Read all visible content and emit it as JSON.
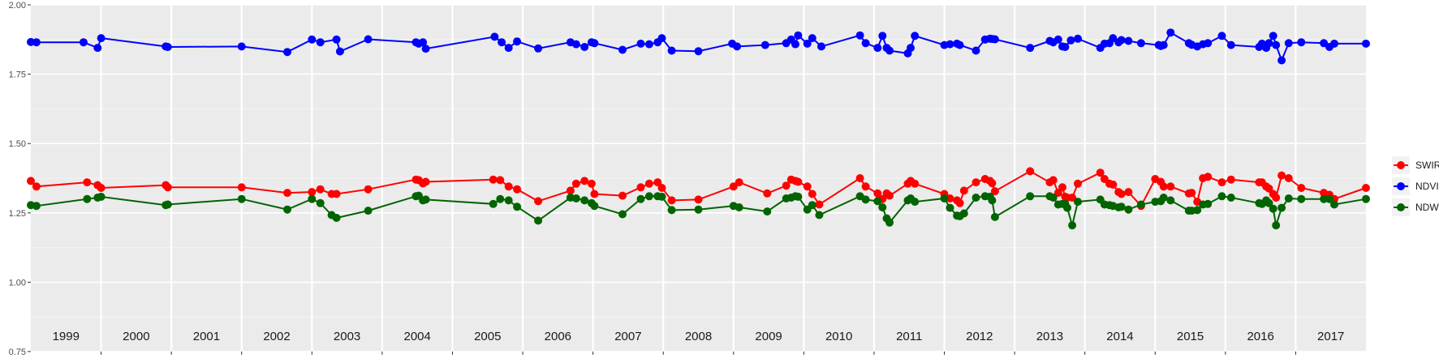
{
  "chart_data": {
    "type": "line",
    "title": "",
    "xlabel": "",
    "ylabel": "",
    "ylim": [
      0.75,
      2.0
    ],
    "yticks": [
      "0.75",
      "1.00",
      "1.25",
      "1.50",
      "1.75",
      "2.00"
    ],
    "xlim": [
      1998.5,
      2017.5
    ],
    "year_labels": [
      "1999",
      "2000",
      "2001",
      "2002",
      "2003",
      "2004",
      "2005",
      "2006",
      "2007",
      "2008",
      "2009",
      "2010",
      "2011",
      "2012",
      "2013",
      "2014",
      "2015",
      "2016",
      "2017"
    ],
    "grid": true,
    "legend_position": "right",
    "series": [
      {
        "name": "SWIR",
        "color": "#ff0000",
        "x": [
          1998.5,
          1998.58,
          1999.3,
          1999.45,
          1999.5,
          2000.42,
          2000.45,
          2001.5,
          2002.15,
          2002.5,
          2002.62,
          2002.78,
          2002.85,
          2003.3,
          2003.98,
          2004.02,
          2004.08,
          2004.12,
          2005.08,
          2005.18,
          2005.3,
          2005.42,
          2005.72,
          2006.18,
          2006.26,
          2006.38,
          2006.48,
          2006.52,
          2006.92,
          2007.18,
          2007.3,
          2007.42,
          2007.48,
          2007.62,
          2008.0,
          2008.5,
          2008.58,
          2008.98,
          2009.25,
          2009.32,
          2009.38,
          2009.42,
          2009.55,
          2009.62,
          2009.72,
          2010.3,
          2010.38,
          2010.55,
          2010.62,
          2010.68,
          2010.72,
          2010.98,
          2011.02,
          2011.08,
          2011.5,
          2011.58,
          2011.68,
          2011.72,
          2011.78,
          2011.95,
          2012.08,
          2012.15,
          2012.18,
          2012.22,
          2012.72,
          2013.0,
          2013.05,
          2013.12,
          2013.18,
          2013.22,
          2013.25,
          2013.32,
          2013.4,
          2013.72,
          2013.78,
          2013.85,
          2013.9,
          2013.98,
          2014.02,
          2014.12,
          2014.3,
          2014.5,
          2014.58,
          2014.62,
          2014.72,
          2014.98,
          2015.02,
          2015.1,
          2015.18,
          2015.25,
          2015.45,
          2015.58,
          2015.98,
          2016.02,
          2016.08,
          2016.12,
          2016.18,
          2016.22,
          2016.3,
          2016.4,
          2016.58,
          2016.9,
          2016.98,
          2017.05,
          2017.5
        ],
        "y": [
          1.365,
          1.345,
          1.36,
          1.35,
          1.34,
          1.35,
          1.342,
          1.342,
          1.322,
          1.325,
          1.335,
          1.318,
          1.318,
          1.335,
          1.37,
          1.368,
          1.356,
          1.362,
          1.37,
          1.368,
          1.345,
          1.335,
          1.292,
          1.33,
          1.355,
          1.365,
          1.355,
          1.318,
          1.312,
          1.342,
          1.355,
          1.36,
          1.34,
          1.295,
          1.298,
          1.345,
          1.36,
          1.32,
          1.348,
          1.37,
          1.365,
          1.362,
          1.345,
          1.318,
          1.28,
          1.375,
          1.345,
          1.32,
          1.3,
          1.32,
          1.312,
          1.355,
          1.365,
          1.355,
          1.318,
          1.302,
          1.295,
          1.285,
          1.33,
          1.36,
          1.372,
          1.365,
          1.357,
          1.328,
          1.4,
          1.36,
          1.368,
          1.322,
          1.342,
          1.308,
          1.305,
          1.305,
          1.355,
          1.395,
          1.372,
          1.355,
          1.352,
          1.325,
          1.318,
          1.325,
          1.275,
          1.372,
          1.362,
          1.345,
          1.345,
          1.32,
          1.322,
          1.29,
          1.375,
          1.38,
          1.36,
          1.37,
          1.36,
          1.36,
          1.345,
          1.338,
          1.318,
          1.305,
          1.385,
          1.375,
          1.34,
          1.322,
          1.315,
          1.3,
          1.34
        ]
      },
      {
        "name": "NDVI",
        "color": "#0000ff",
        "x": [
          1998.5,
          1998.58,
          1999.25,
          1999.45,
          1999.5,
          2000.42,
          2000.45,
          2001.5,
          2002.15,
          2002.5,
          2002.62,
          2002.85,
          2002.9,
          2003.3,
          2003.98,
          2004.02,
          2004.08,
          2004.12,
          2005.1,
          2005.2,
          2005.3,
          2005.42,
          2005.72,
          2006.18,
          2006.26,
          2006.38,
          2006.48,
          2006.52,
          2006.92,
          2007.18,
          2007.3,
          2007.42,
          2007.48,
          2007.62,
          2008.0,
          2008.48,
          2008.55,
          2008.95,
          2009.25,
          2009.32,
          2009.38,
          2009.42,
          2009.55,
          2009.62,
          2009.75,
          2010.3,
          2010.38,
          2010.55,
          2010.62,
          2010.68,
          2010.72,
          2010.98,
          2011.02,
          2011.08,
          2011.5,
          2011.58,
          2011.68,
          2011.72,
          2011.95,
          2012.08,
          2012.15,
          2012.18,
          2012.22,
          2012.72,
          2013.0,
          2013.05,
          2013.12,
          2013.18,
          2013.22,
          2013.3,
          2013.4,
          2013.72,
          2013.78,
          2013.85,
          2013.9,
          2013.98,
          2014.02,
          2014.12,
          2014.3,
          2014.55,
          2014.58,
          2014.62,
          2014.72,
          2014.98,
          2015.02,
          2015.1,
          2015.18,
          2015.25,
          2015.45,
          2015.58,
          2015.98,
          2016.02,
          2016.08,
          2016.12,
          2016.18,
          2016.22,
          2016.3,
          2016.4,
          2016.58,
          2016.9,
          2016.98,
          2017.05,
          2017.5
        ],
        "y": [
          1.866,
          1.865,
          1.865,
          1.845,
          1.88,
          1.85,
          1.848,
          1.85,
          1.83,
          1.875,
          1.865,
          1.875,
          1.832,
          1.876,
          1.865,
          1.86,
          1.865,
          1.842,
          1.885,
          1.865,
          1.845,
          1.868,
          1.843,
          1.865,
          1.858,
          1.848,
          1.865,
          1.862,
          1.838,
          1.86,
          1.858,
          1.865,
          1.88,
          1.835,
          1.833,
          1.86,
          1.85,
          1.855,
          1.862,
          1.875,
          1.858,
          1.89,
          1.86,
          1.88,
          1.85,
          1.89,
          1.862,
          1.845,
          1.888,
          1.845,
          1.835,
          1.825,
          1.845,
          1.888,
          1.855,
          1.858,
          1.86,
          1.855,
          1.835,
          1.875,
          1.878,
          1.877,
          1.876,
          1.845,
          1.87,
          1.865,
          1.875,
          1.85,
          1.848,
          1.872,
          1.878,
          1.845,
          1.86,
          1.862,
          1.88,
          1.865,
          1.873,
          1.87,
          1.862,
          1.855,
          1.852,
          1.855,
          1.9,
          1.862,
          1.856,
          1.85,
          1.858,
          1.862,
          1.888,
          1.855,
          1.848,
          1.86,
          1.845,
          1.862,
          1.888,
          1.855,
          1.8,
          1.862,
          1.865,
          1.862,
          1.848,
          1.86,
          1.86
        ]
      },
      {
        "name": "NDWI",
        "color": "#006400",
        "x": [
          1998.5,
          1998.58,
          1999.3,
          1999.45,
          1999.5,
          2000.42,
          2000.45,
          2001.5,
          2002.15,
          2002.5,
          2002.62,
          2002.78,
          2002.85,
          2003.3,
          2003.98,
          2004.02,
          2004.08,
          2004.12,
          2005.08,
          2005.18,
          2005.3,
          2005.42,
          2005.72,
          2006.18,
          2006.26,
          2006.38,
          2006.48,
          2006.52,
          2006.92,
          2007.18,
          2007.3,
          2007.42,
          2007.48,
          2007.62,
          2008.0,
          2008.5,
          2008.58,
          2008.98,
          2009.25,
          2009.32,
          2009.38,
          2009.42,
          2009.55,
          2009.62,
          2009.72,
          2010.3,
          2010.38,
          2010.55,
          2010.62,
          2010.68,
          2010.72,
          2010.98,
          2011.02,
          2011.08,
          2011.5,
          2011.58,
          2011.68,
          2011.72,
          2011.78,
          2011.95,
          2012.08,
          2012.15,
          2012.18,
          2012.22,
          2012.72,
          2013.0,
          2013.05,
          2013.12,
          2013.18,
          2013.22,
          2013.25,
          2013.32,
          2013.4,
          2013.72,
          2013.78,
          2013.85,
          2013.9,
          2013.98,
          2014.02,
          2014.12,
          2014.3,
          2014.5,
          2014.58,
          2014.62,
          2014.72,
          2014.98,
          2015.02,
          2015.1,
          2015.18,
          2015.25,
          2015.45,
          2015.58,
          2015.98,
          2016.02,
          2016.08,
          2016.12,
          2016.18,
          2016.22,
          2016.3,
          2016.4,
          2016.58,
          2016.9,
          2016.98,
          2017.05,
          2017.5
        ],
        "y": [
          1.278,
          1.275,
          1.3,
          1.305,
          1.308,
          1.278,
          1.28,
          1.3,
          1.262,
          1.3,
          1.285,
          1.242,
          1.232,
          1.258,
          1.31,
          1.312,
          1.295,
          1.298,
          1.282,
          1.3,
          1.295,
          1.272,
          1.222,
          1.305,
          1.302,
          1.295,
          1.285,
          1.275,
          1.245,
          1.3,
          1.31,
          1.31,
          1.308,
          1.26,
          1.262,
          1.275,
          1.27,
          1.255,
          1.302,
          1.305,
          1.31,
          1.308,
          1.262,
          1.278,
          1.242,
          1.31,
          1.298,
          1.292,
          1.27,
          1.23,
          1.215,
          1.295,
          1.302,
          1.29,
          1.302,
          1.268,
          1.24,
          1.238,
          1.248,
          1.305,
          1.31,
          1.308,
          1.295,
          1.235,
          1.31,
          1.31,
          1.305,
          1.28,
          1.282,
          1.282,
          1.268,
          1.205,
          1.29,
          1.298,
          1.28,
          1.278,
          1.275,
          1.27,
          1.272,
          1.262,
          1.28,
          1.29,
          1.292,
          1.305,
          1.295,
          1.258,
          1.258,
          1.26,
          1.28,
          1.282,
          1.31,
          1.305,
          1.285,
          1.282,
          1.295,
          1.285,
          1.265,
          1.205,
          1.268,
          1.302,
          1.3,
          1.3,
          1.3,
          1.28,
          1.3
        ]
      }
    ]
  }
}
